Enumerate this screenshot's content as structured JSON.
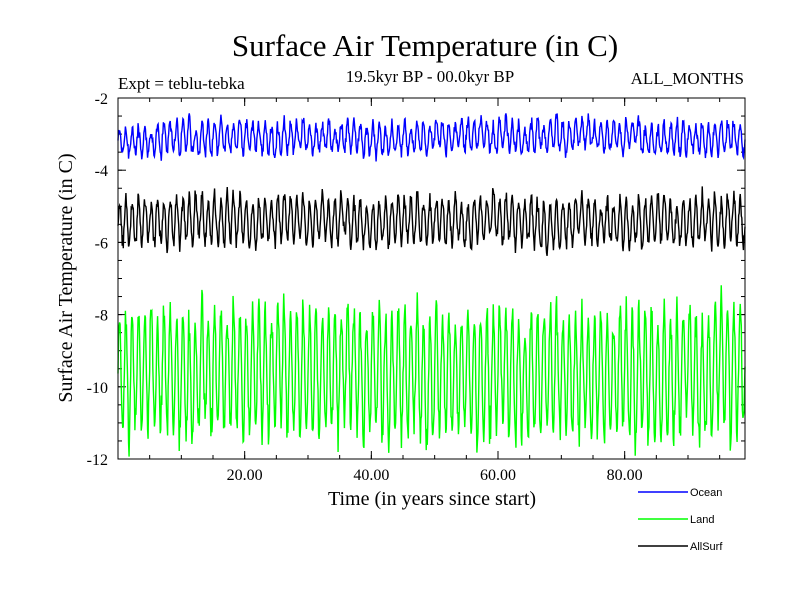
{
  "chart_data": {
    "type": "line",
    "title": "Surface Air Temperature (in C)",
    "subtitle": "19.5kyr BP - 00.0kyr BP",
    "left_annotation": "Expt = teblu-tebka",
    "right_annotation": "ALL_MONTHS",
    "xlabel": "Time (in years since start)",
    "ylabel": "Surface Air Temperature (in C)",
    "xlim": [
      0,
      99
    ],
    "ylim": [
      -12,
      -2
    ],
    "x_ticks": [
      20,
      40,
      60,
      80
    ],
    "x_tick_labels": [
      "20.00",
      "40.00",
      "60.00",
      "80.00"
    ],
    "y_ticks": [
      -2,
      -4,
      -6,
      -8,
      -10,
      -12
    ],
    "y_tick_labels": [
      "-2",
      "-4",
      "-6",
      "-8",
      "-10",
      "-12"
    ],
    "months_per_year": 12,
    "series": [
      {
        "name": "Ocean",
        "color": "#0000ff",
        "mean": -3.1,
        "amplitude": 0.38,
        "noise": 0.28,
        "seed": 11
      },
      {
        "name": "Land",
        "color": "#00ff00",
        "mean": -9.6,
        "amplitude": 1.6,
        "noise": 0.55,
        "seed": 23
      },
      {
        "name": "AllSurf",
        "color": "#000000",
        "mean": -5.4,
        "amplitude": 0.6,
        "noise": 0.3,
        "seed": 37
      }
    ]
  }
}
